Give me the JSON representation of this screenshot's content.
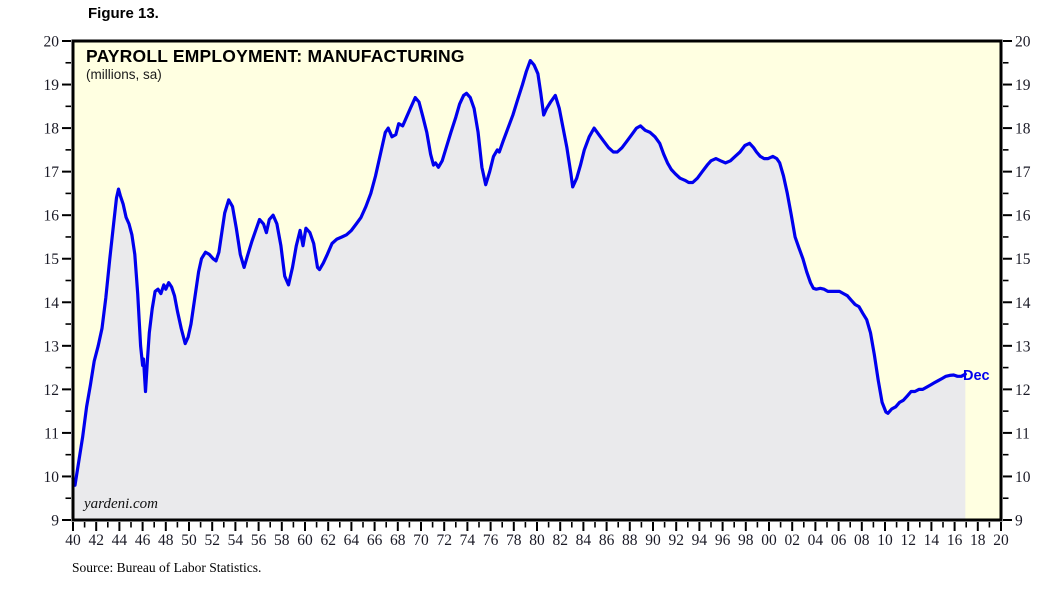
{
  "figure_label": "Figure 13.",
  "watermark": "yardeni.com",
  "source": "Source: Bureau of Labor Statistics.",
  "chart_data": {
    "type": "area",
    "title": "PAYROLL EMPLOYMENT: MANUFACTURING",
    "subtitle": "(millions, sa)",
    "legend": "none",
    "grid": "off",
    "xlim": [
      1940,
      2020
    ],
    "ylim": [
      9,
      20
    ],
    "x_tick_label_step_years": 2,
    "x_minor_tick_step_years": 1,
    "y_tick_step": 1,
    "y_minor_tick_step": 0.5,
    "y_axis_sides": "both",
    "x_tick_labels": [
      "40",
      "42",
      "44",
      "46",
      "48",
      "50",
      "52",
      "54",
      "56",
      "58",
      "60",
      "62",
      "64",
      "66",
      "68",
      "70",
      "72",
      "74",
      "76",
      "78",
      "80",
      "82",
      "84",
      "86",
      "88",
      "90",
      "92",
      "94",
      "96",
      "98",
      "00",
      "02",
      "04",
      "06",
      "08",
      "10",
      "12",
      "14",
      "16",
      "18",
      "20"
    ],
    "y_tick_labels": [
      "9",
      "10",
      "11",
      "12",
      "13",
      "14",
      "15",
      "16",
      "17",
      "18",
      "19",
      "20"
    ],
    "last_point_label": "Dec",
    "last_point": [
      2016.92,
      12.35
    ],
    "colors": {
      "line": "#0000EE",
      "area_fill": "#EAEAEC",
      "plot_background": "#FFFFE1",
      "frame": "#000000",
      "tick_label": "#1A1A26",
      "end_label": "#0000EE"
    },
    "series": [
      {
        "name": "manufacturing-payroll-employment-millions-sa",
        "points": [
          [
            1940.0,
            9.95
          ],
          [
            1940.17,
            9.8
          ],
          [
            1940.5,
            10.35
          ],
          [
            1940.83,
            10.9
          ],
          [
            1941.17,
            11.6
          ],
          [
            1941.5,
            12.1
          ],
          [
            1941.83,
            12.65
          ],
          [
            1942.17,
            13.0
          ],
          [
            1942.5,
            13.4
          ],
          [
            1942.83,
            14.1
          ],
          [
            1943.17,
            15.0
          ],
          [
            1943.5,
            15.8
          ],
          [
            1943.75,
            16.4
          ],
          [
            1943.92,
            16.6
          ],
          [
            1944.08,
            16.45
          ],
          [
            1944.33,
            16.25
          ],
          [
            1944.58,
            15.95
          ],
          [
            1944.83,
            15.8
          ],
          [
            1945.08,
            15.55
          ],
          [
            1945.33,
            15.1
          ],
          [
            1945.58,
            14.2
          ],
          [
            1945.83,
            13.0
          ],
          [
            1946.0,
            12.55
          ],
          [
            1946.08,
            12.7
          ],
          [
            1946.25,
            11.95
          ],
          [
            1946.42,
            12.7
          ],
          [
            1946.58,
            13.3
          ],
          [
            1946.83,
            13.85
          ],
          [
            1947.08,
            14.25
          ],
          [
            1947.33,
            14.3
          ],
          [
            1947.58,
            14.2
          ],
          [
            1947.83,
            14.4
          ],
          [
            1948.0,
            14.3
          ],
          [
            1948.25,
            14.45
          ],
          [
            1948.5,
            14.35
          ],
          [
            1948.75,
            14.15
          ],
          [
            1949.0,
            13.8
          ],
          [
            1949.33,
            13.4
          ],
          [
            1949.67,
            13.05
          ],
          [
            1949.92,
            13.2
          ],
          [
            1950.17,
            13.5
          ],
          [
            1950.5,
            14.1
          ],
          [
            1950.83,
            14.7
          ],
          [
            1951.08,
            15.0
          ],
          [
            1951.42,
            15.15
          ],
          [
            1951.75,
            15.1
          ],
          [
            1952.08,
            15.0
          ],
          [
            1952.33,
            14.95
          ],
          [
            1952.58,
            15.15
          ],
          [
            1952.83,
            15.6
          ],
          [
            1953.08,
            16.05
          ],
          [
            1953.42,
            16.35
          ],
          [
            1953.75,
            16.2
          ],
          [
            1954.08,
            15.7
          ],
          [
            1954.42,
            15.1
          ],
          [
            1954.75,
            14.8
          ],
          [
            1955.08,
            15.1
          ],
          [
            1955.42,
            15.4
          ],
          [
            1955.75,
            15.65
          ],
          [
            1956.08,
            15.9
          ],
          [
            1956.42,
            15.8
          ],
          [
            1956.67,
            15.6
          ],
          [
            1956.92,
            15.9
          ],
          [
            1957.25,
            16.0
          ],
          [
            1957.58,
            15.8
          ],
          [
            1957.92,
            15.3
          ],
          [
            1958.25,
            14.6
          ],
          [
            1958.58,
            14.4
          ],
          [
            1958.92,
            14.8
          ],
          [
            1959.25,
            15.3
          ],
          [
            1959.58,
            15.65
          ],
          [
            1959.83,
            15.3
          ],
          [
            1960.08,
            15.7
          ],
          [
            1960.42,
            15.6
          ],
          [
            1960.75,
            15.35
          ],
          [
            1961.08,
            14.8
          ],
          [
            1961.25,
            14.75
          ],
          [
            1961.58,
            14.9
          ],
          [
            1961.92,
            15.1
          ],
          [
            1962.33,
            15.35
          ],
          [
            1962.75,
            15.45
          ],
          [
            1963.17,
            15.5
          ],
          [
            1963.58,
            15.55
          ],
          [
            1964.0,
            15.65
          ],
          [
            1964.42,
            15.8
          ],
          [
            1964.83,
            15.95
          ],
          [
            1965.25,
            16.2
          ],
          [
            1965.67,
            16.5
          ],
          [
            1966.08,
            16.9
          ],
          [
            1966.5,
            17.4
          ],
          [
            1966.92,
            17.9
          ],
          [
            1967.17,
            18.0
          ],
          [
            1967.5,
            17.8
          ],
          [
            1967.83,
            17.85
          ],
          [
            1968.08,
            18.1
          ],
          [
            1968.42,
            18.05
          ],
          [
            1968.75,
            18.25
          ],
          [
            1969.08,
            18.45
          ],
          [
            1969.5,
            18.7
          ],
          [
            1969.83,
            18.6
          ],
          [
            1970.17,
            18.25
          ],
          [
            1970.5,
            17.9
          ],
          [
            1970.83,
            17.4
          ],
          [
            1971.08,
            17.15
          ],
          [
            1971.25,
            17.2
          ],
          [
            1971.5,
            17.1
          ],
          [
            1971.83,
            17.25
          ],
          [
            1972.17,
            17.55
          ],
          [
            1972.58,
            17.9
          ],
          [
            1973.0,
            18.25
          ],
          [
            1973.33,
            18.55
          ],
          [
            1973.67,
            18.75
          ],
          [
            1973.92,
            18.8
          ],
          [
            1974.25,
            18.7
          ],
          [
            1974.58,
            18.45
          ],
          [
            1974.92,
            17.9
          ],
          [
            1975.25,
            17.1
          ],
          [
            1975.58,
            16.7
          ],
          [
            1975.92,
            17.0
          ],
          [
            1976.25,
            17.35
          ],
          [
            1976.58,
            17.5
          ],
          [
            1976.75,
            17.45
          ],
          [
            1977.08,
            17.7
          ],
          [
            1977.5,
            18.0
          ],
          [
            1977.92,
            18.3
          ],
          [
            1978.33,
            18.65
          ],
          [
            1978.75,
            19.0
          ],
          [
            1979.08,
            19.3
          ],
          [
            1979.42,
            19.55
          ],
          [
            1979.75,
            19.45
          ],
          [
            1980.08,
            19.25
          ],
          [
            1980.33,
            18.8
          ],
          [
            1980.58,
            18.3
          ],
          [
            1980.83,
            18.45
          ],
          [
            1981.17,
            18.6
          ],
          [
            1981.58,
            18.75
          ],
          [
            1981.92,
            18.45
          ],
          [
            1982.25,
            18.0
          ],
          [
            1982.58,
            17.55
          ],
          [
            1982.92,
            16.95
          ],
          [
            1983.08,
            16.65
          ],
          [
            1983.42,
            16.85
          ],
          [
            1983.75,
            17.15
          ],
          [
            1984.08,
            17.5
          ],
          [
            1984.5,
            17.8
          ],
          [
            1984.92,
            18.0
          ],
          [
            1985.33,
            17.85
          ],
          [
            1985.75,
            17.7
          ],
          [
            1986.17,
            17.55
          ],
          [
            1986.58,
            17.45
          ],
          [
            1986.92,
            17.45
          ],
          [
            1987.33,
            17.55
          ],
          [
            1987.75,
            17.7
          ],
          [
            1988.17,
            17.85
          ],
          [
            1988.58,
            18.0
          ],
          [
            1988.92,
            18.05
          ],
          [
            1989.33,
            17.95
          ],
          [
            1989.75,
            17.9
          ],
          [
            1990.17,
            17.8
          ],
          [
            1990.58,
            17.65
          ],
          [
            1990.92,
            17.4
          ],
          [
            1991.25,
            17.2
          ],
          [
            1991.58,
            17.05
          ],
          [
            1991.92,
            16.95
          ],
          [
            1992.33,
            16.85
          ],
          [
            1992.75,
            16.8
          ],
          [
            1993.08,
            16.75
          ],
          [
            1993.42,
            16.75
          ],
          [
            1993.83,
            16.85
          ],
          [
            1994.25,
            17.0
          ],
          [
            1994.67,
            17.15
          ],
          [
            1995.0,
            17.25
          ],
          [
            1995.42,
            17.3
          ],
          [
            1995.83,
            17.25
          ],
          [
            1996.25,
            17.2
          ],
          [
            1996.67,
            17.25
          ],
          [
            1997.08,
            17.35
          ],
          [
            1997.5,
            17.45
          ],
          [
            1997.92,
            17.6
          ],
          [
            1998.33,
            17.65
          ],
          [
            1998.67,
            17.55
          ],
          [
            1998.92,
            17.45
          ],
          [
            1999.25,
            17.35
          ],
          [
            1999.58,
            17.3
          ],
          [
            1999.92,
            17.3
          ],
          [
            2000.33,
            17.35
          ],
          [
            2000.67,
            17.3
          ],
          [
            2000.92,
            17.2
          ],
          [
            2001.25,
            16.9
          ],
          [
            2001.58,
            16.5
          ],
          [
            2001.92,
            16.0
          ],
          [
            2002.25,
            15.5
          ],
          [
            2002.58,
            15.25
          ],
          [
            2002.92,
            15.0
          ],
          [
            2003.25,
            14.7
          ],
          [
            2003.58,
            14.45
          ],
          [
            2003.83,
            14.32
          ],
          [
            2004.08,
            14.3
          ],
          [
            2004.42,
            14.32
          ],
          [
            2004.75,
            14.3
          ],
          [
            2005.08,
            14.25
          ],
          [
            2005.42,
            14.25
          ],
          [
            2005.75,
            14.25
          ],
          [
            2006.08,
            14.25
          ],
          [
            2006.42,
            14.2
          ],
          [
            2006.75,
            14.15
          ],
          [
            2007.08,
            14.05
          ],
          [
            2007.42,
            13.95
          ],
          [
            2007.75,
            13.9
          ],
          [
            2008.08,
            13.75
          ],
          [
            2008.42,
            13.6
          ],
          [
            2008.75,
            13.3
          ],
          [
            2009.08,
            12.8
          ],
          [
            2009.42,
            12.2
          ],
          [
            2009.75,
            11.7
          ],
          [
            2010.08,
            11.48
          ],
          [
            2010.25,
            11.45
          ],
          [
            2010.58,
            11.55
          ],
          [
            2010.92,
            11.6
          ],
          [
            2011.25,
            11.7
          ],
          [
            2011.58,
            11.75
          ],
          [
            2011.92,
            11.85
          ],
          [
            2012.25,
            11.95
          ],
          [
            2012.58,
            11.95
          ],
          [
            2012.92,
            12.0
          ],
          [
            2013.25,
            12.0
          ],
          [
            2013.58,
            12.05
          ],
          [
            2013.92,
            12.1
          ],
          [
            2014.25,
            12.15
          ],
          [
            2014.58,
            12.2
          ],
          [
            2014.92,
            12.25
          ],
          [
            2015.25,
            12.3
          ],
          [
            2015.58,
            12.32
          ],
          [
            2015.92,
            12.33
          ],
          [
            2016.25,
            12.3
          ],
          [
            2016.58,
            12.3
          ],
          [
            2016.92,
            12.35
          ]
        ]
      }
    ]
  }
}
